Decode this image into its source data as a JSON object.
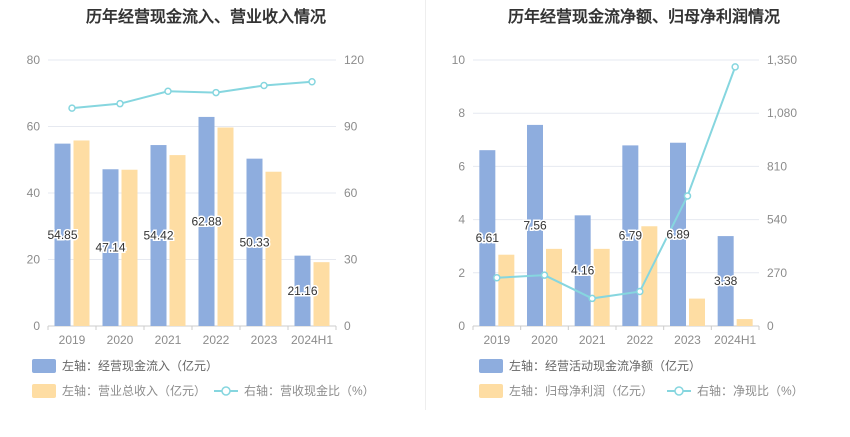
{
  "colors": {
    "bar_primary": "#8eadde",
    "bar_secondary": "#fedda3",
    "line": "#86d6df",
    "grid": "#e6e9f0",
    "axis_text": "#8c8c8c",
    "title_text": "#333333",
    "legend_text": "#666666",
    "data_label": "#333333"
  },
  "chart_data": [
    {
      "type": "bar",
      "title": "历年经营现金流入、营业收入情况",
      "categories": [
        "2019",
        "2020",
        "2021",
        "2022",
        "2023",
        "2024H1"
      ],
      "left_axis": {
        "ticks": [
          "0",
          "20",
          "40",
          "60",
          "80"
        ],
        "ylim": [
          0,
          80
        ]
      },
      "right_axis": {
        "ticks": [
          "0",
          "30",
          "60",
          "90",
          "120"
        ],
        "ylim": [
          0,
          120
        ]
      },
      "series": [
        {
          "name": "左轴：经营现金流入（亿元）",
          "type": "bar",
          "axis": "left",
          "values": [
            54.85,
            47.14,
            54.42,
            62.88,
            50.33,
            21.16
          ],
          "labels": [
            "54.85",
            "47.14",
            "54.42",
            "62.88",
            "50.33",
            "21.16"
          ]
        },
        {
          "name": "左轴：营业总收入（亿元）",
          "type": "bar",
          "axis": "left",
          "values": [
            55.8,
            47.0,
            51.4,
            59.7,
            46.4,
            19.2
          ]
        },
        {
          "name": "右轴：营收现金比（%）",
          "type": "line",
          "axis": "right",
          "values": [
            98.3,
            100.3,
            105.9,
            105.3,
            108.5,
            110.2
          ]
        }
      ],
      "grid": true,
      "legend_position": "bottom"
    },
    {
      "type": "bar",
      "title": "历年经营现金流净额、归母净利润情况",
      "categories": [
        "2019",
        "2020",
        "2021",
        "2022",
        "2023",
        "2024H1"
      ],
      "left_axis": {
        "ticks": [
          "0",
          "2",
          "4",
          "6",
          "8",
          "10"
        ],
        "ylim": [
          0,
          10
        ]
      },
      "right_axis": {
        "ticks": [
          "0",
          "270",
          "540",
          "810",
          "1,080",
          "1,350"
        ],
        "ylim": [
          0,
          1350
        ]
      },
      "series": [
        {
          "name": "左轴：经营活动现金流净额（亿元）",
          "type": "bar",
          "axis": "left",
          "values": [
            6.61,
            7.56,
            4.16,
            6.79,
            6.89,
            3.38
          ],
          "labels": [
            "6.61",
            "7.56",
            "4.16",
            "6.79",
            "6.89",
            "3.38"
          ]
        },
        {
          "name": "左轴：归母净利润（亿元）",
          "type": "bar",
          "axis": "left",
          "values": [
            2.68,
            2.9,
            2.9,
            3.75,
            1.03,
            0.26
          ]
        },
        {
          "name": "右轴：净现比（%）",
          "type": "line",
          "axis": "right",
          "values": [
            245,
            258,
            140,
            175,
            660,
            1315
          ]
        }
      ],
      "grid": true,
      "legend_position": "bottom"
    }
  ]
}
